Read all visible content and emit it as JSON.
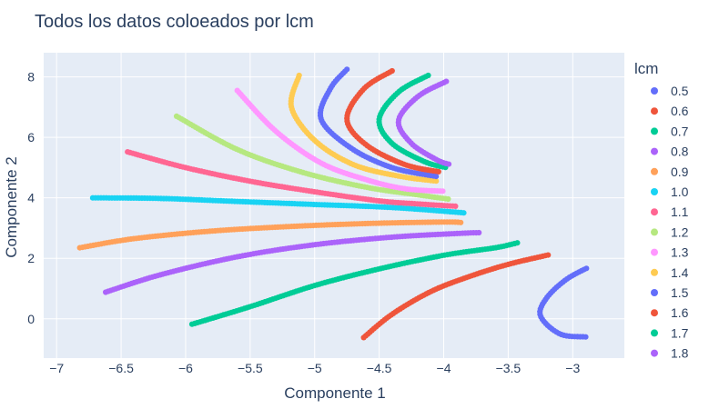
{
  "chart_data": {
    "type": "scatter",
    "title": "Todos los datos coloeados por lcm",
    "xlabel": "Componente 1",
    "ylabel": "Componente 2",
    "xlim": [
      -7.1,
      -2.6
    ],
    "ylim": [
      -1.3,
      8.8
    ],
    "xticks": [
      -7,
      -6.5,
      -6,
      -5.5,
      -5,
      -4.5,
      -4,
      -3.5,
      -3
    ],
    "xtick_labels": [
      "−7",
      "−6.5",
      "−6",
      "−5.5",
      "−5",
      "−4.5",
      "−4",
      "−3.5",
      "−3"
    ],
    "yticks": [
      0,
      2,
      4,
      6,
      8
    ],
    "ytick_labels": [
      "0",
      "2",
      "4",
      "6",
      "8"
    ],
    "grid": true,
    "legend_title": "lcm",
    "legend_position": "right",
    "series": [
      {
        "name": "0.5",
        "color": "#636efa",
        "points": [
          [
            -2.9,
            -0.6
          ],
          [
            -3.1,
            -0.5
          ],
          [
            -3.25,
            0.1
          ],
          [
            -3.2,
            0.7
          ],
          [
            -3.05,
            1.3
          ],
          [
            -2.88,
            1.7
          ]
        ]
      },
      {
        "name": "0.6",
        "color": "#EF553B",
        "points": [
          [
            -4.62,
            -0.62
          ],
          [
            -4.4,
            0.15
          ],
          [
            -4.1,
            0.9
          ],
          [
            -3.8,
            1.4
          ],
          [
            -3.5,
            1.8
          ],
          [
            -3.18,
            2.12
          ]
        ]
      },
      {
        "name": "0.7",
        "color": "#00cc96",
        "points": [
          [
            -5.95,
            -0.18
          ],
          [
            -5.5,
            0.4
          ],
          [
            -5.0,
            1.1
          ],
          [
            -4.5,
            1.65
          ],
          [
            -4.0,
            2.1
          ],
          [
            -3.6,
            2.35
          ],
          [
            -3.42,
            2.52
          ]
        ]
      },
      {
        "name": "0.8",
        "color": "#ab63fa",
        "points": [
          [
            -6.62,
            0.88
          ],
          [
            -6.2,
            1.45
          ],
          [
            -5.6,
            2.05
          ],
          [
            -5.0,
            2.45
          ],
          [
            -4.4,
            2.7
          ],
          [
            -3.9,
            2.82
          ],
          [
            -3.72,
            2.85
          ]
        ]
      },
      {
        "name": "0.9",
        "color": "#FFA15A",
        "points": [
          [
            -6.82,
            2.35
          ],
          [
            -6.4,
            2.65
          ],
          [
            -5.8,
            2.9
          ],
          [
            -5.2,
            3.05
          ],
          [
            -4.6,
            3.15
          ],
          [
            -4.0,
            3.2
          ],
          [
            -3.85,
            3.18
          ]
        ]
      },
      {
        "name": "1.0",
        "color": "#19d3f3",
        "points": [
          [
            -6.72,
            4.0
          ],
          [
            -6.2,
            3.98
          ],
          [
            -5.6,
            3.88
          ],
          [
            -5.0,
            3.78
          ],
          [
            -4.4,
            3.68
          ],
          [
            -3.83,
            3.5
          ]
        ]
      },
      {
        "name": "1.1",
        "color": "#FF6692",
        "points": [
          [
            -6.45,
            5.52
          ],
          [
            -6.0,
            5.0
          ],
          [
            -5.5,
            4.55
          ],
          [
            -5.0,
            4.2
          ],
          [
            -4.5,
            3.9
          ],
          [
            -4.2,
            3.8
          ],
          [
            -3.9,
            3.72
          ]
        ]
      },
      {
        "name": "1.2",
        "color": "#B6E880",
        "points": [
          [
            -6.07,
            6.7
          ],
          [
            -5.6,
            5.6
          ],
          [
            -5.1,
            4.85
          ],
          [
            -4.6,
            4.35
          ],
          [
            -4.2,
            4.1
          ],
          [
            -3.95,
            3.95
          ]
        ]
      },
      {
        "name": "1.3",
        "color": "#FF97FF",
        "points": [
          [
            -5.6,
            7.55
          ],
          [
            -5.3,
            6.2
          ],
          [
            -4.95,
            5.15
          ],
          [
            -4.6,
            4.6
          ],
          [
            -4.3,
            4.3
          ],
          [
            -4.0,
            4.22
          ]
        ]
      },
      {
        "name": "1.4",
        "color": "#FECB52",
        "points": [
          [
            -5.12,
            8.05
          ],
          [
            -5.18,
            7.0
          ],
          [
            -5.0,
            5.9
          ],
          [
            -4.7,
            5.1
          ],
          [
            -4.35,
            4.72
          ],
          [
            -4.05,
            4.55
          ]
        ]
      },
      {
        "name": "1.5",
        "color": "#636efa",
        "points": [
          [
            -4.75,
            8.25
          ],
          [
            -4.88,
            7.6
          ],
          [
            -4.95,
            6.6
          ],
          [
            -4.72,
            5.65
          ],
          [
            -4.4,
            5.0
          ],
          [
            -4.05,
            4.7
          ]
        ]
      },
      {
        "name": "1.6",
        "color": "#EF553B",
        "points": [
          [
            -4.4,
            8.2
          ],
          [
            -4.62,
            7.6
          ],
          [
            -4.75,
            6.6
          ],
          [
            -4.6,
            5.75
          ],
          [
            -4.3,
            5.1
          ],
          [
            -4.02,
            4.85
          ]
        ]
      },
      {
        "name": "1.7",
        "color": "#00cc96",
        "points": [
          [
            -4.12,
            8.05
          ],
          [
            -4.35,
            7.5
          ],
          [
            -4.5,
            6.6
          ],
          [
            -4.4,
            5.8
          ],
          [
            -4.15,
            5.2
          ],
          [
            -3.98,
            5.0
          ]
        ]
      },
      {
        "name": "1.8",
        "color": "#ab63fa",
        "points": [
          [
            -3.98,
            7.85
          ],
          [
            -4.2,
            7.35
          ],
          [
            -4.35,
            6.55
          ],
          [
            -4.25,
            5.8
          ],
          [
            -4.05,
            5.25
          ],
          [
            -3.95,
            5.1
          ]
        ]
      }
    ]
  }
}
